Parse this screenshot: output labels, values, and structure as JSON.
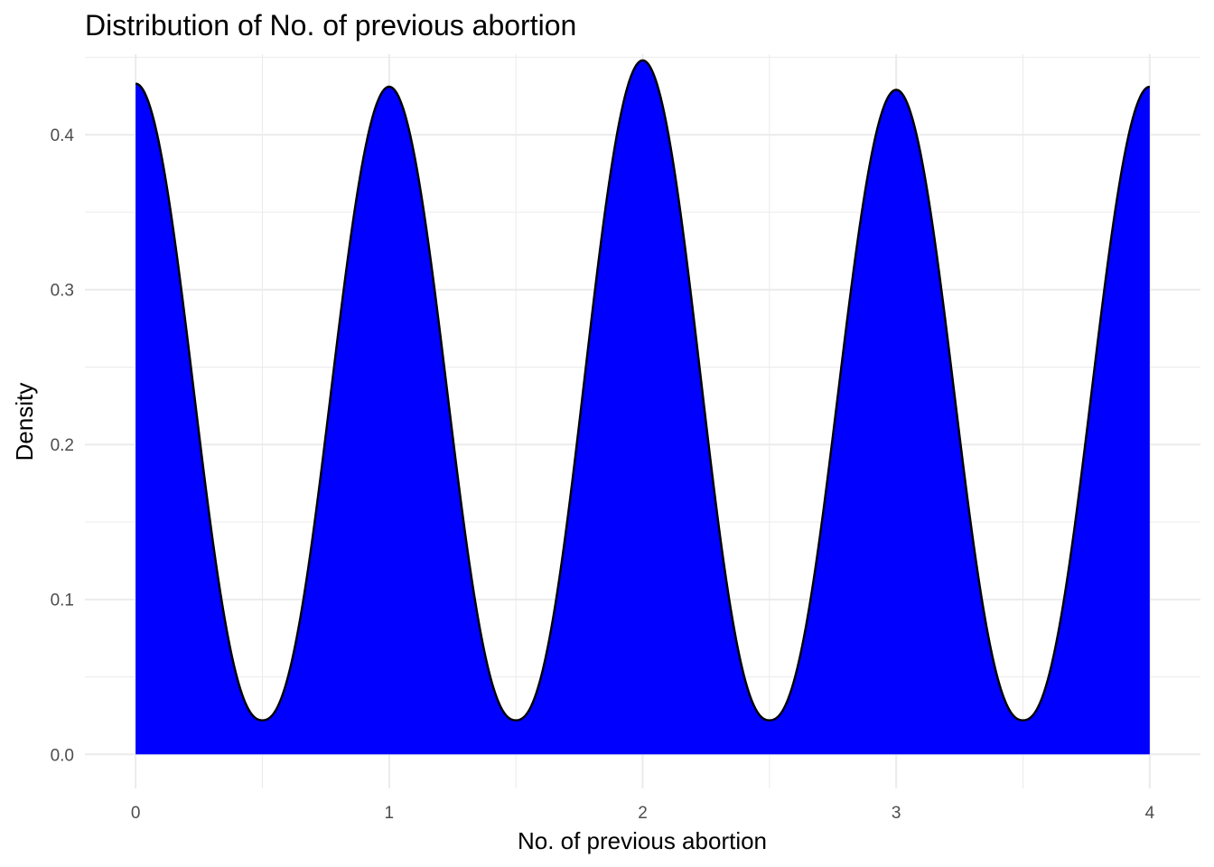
{
  "chart_data": {
    "type": "area",
    "title": "Distribution of No. of previous abortion",
    "xlabel": "No. of previous abortion",
    "ylabel": "Density",
    "xlim": [
      -0.2,
      4.2
    ],
    "ylim": [
      -0.022,
      0.452
    ],
    "x_ticks": [
      "0",
      "1",
      "2",
      "3",
      "4"
    ],
    "x_tick_values": [
      0,
      1,
      2,
      3,
      4
    ],
    "y_ticks": [
      "0.0",
      "0.1",
      "0.2",
      "0.3",
      "0.4"
    ],
    "y_tick_values": [
      0,
      0.1,
      0.2,
      0.3,
      0.4
    ],
    "grid": true,
    "fill_color": "#0000ff",
    "line_color": "#000000",
    "density_shape": {
      "peaks": [
        {
          "x": 0,
          "y": 0.433
        },
        {
          "x": 1,
          "y": 0.431
        },
        {
          "x": 2,
          "y": 0.448
        },
        {
          "x": 3,
          "y": 0.429
        },
        {
          "x": 4,
          "y": 0.431
        }
      ],
      "trough_y": 0.022
    }
  }
}
